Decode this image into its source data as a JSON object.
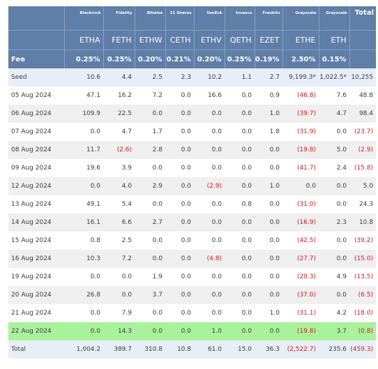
{
  "chart_data": {
    "type": "table",
    "columns": [
      {
        "issuer": "",
        "ticker": "",
        "fee": "Fee"
      },
      {
        "issuer": "Blackrock",
        "ticker": "ETHA",
        "fee": "0.25%"
      },
      {
        "issuer": "Fidelity",
        "ticker": "FETH",
        "fee": "0.25%"
      },
      {
        "issuer": "Bitwise",
        "ticker": "ETHW",
        "fee": "0.20%"
      },
      {
        "issuer": "21 Shares",
        "ticker": "CETH",
        "fee": "0.21%"
      },
      {
        "issuer": "VanEck",
        "ticker": "ETHV",
        "fee": "0.20%"
      },
      {
        "issuer": "Invesco",
        "ticker": "QETH",
        "fee": "0.25%"
      },
      {
        "issuer": "Franklin",
        "ticker": "EZET",
        "fee": "0.19%"
      },
      {
        "issuer": "Grayscale",
        "ticker": "ETHE",
        "fee": "2.50%"
      },
      {
        "issuer": "Grayscale",
        "ticker": "ETH",
        "fee": "0.15%"
      },
      {
        "issuer": "Total",
        "ticker": "",
        "fee": ""
      }
    ],
    "rows": [
      {
        "label": "Seed",
        "style": "seed",
        "cells": [
          "10.6",
          "4.4",
          "2.5",
          "2.3",
          "10.2",
          "1.1",
          "2.7",
          "9,199.3*",
          "1,022.5*",
          "10,255"
        ]
      },
      {
        "label": "05 Aug 2024",
        "style": "plain",
        "cells": [
          "47.1",
          "16.2",
          "7.2",
          "0.0",
          "16.6",
          "0.0",
          "0.9",
          "(46.8)",
          "7.6",
          "48.8"
        ]
      },
      {
        "label": "06 Aug 2024",
        "style": "alt",
        "cells": [
          "109.9",
          "22.5",
          "0.0",
          "0.0",
          "0.0",
          "0.0",
          "1.0",
          "(39.7)",
          "4.7",
          "98.4"
        ]
      },
      {
        "label": "07 Aug 2024",
        "style": "plain",
        "cells": [
          "0.0",
          "4.7",
          "1.7",
          "0.0",
          "0.0",
          "0.0",
          "1.8",
          "(31.9)",
          "0.0",
          "(23.7)"
        ]
      },
      {
        "label": "08 Aug 2024",
        "style": "alt",
        "cells": [
          "11.7",
          "(2.6)",
          "2.8",
          "0.0",
          "0.0",
          "0.0",
          "0.0",
          "(19.8)",
          "5.0",
          "(2.9)"
        ]
      },
      {
        "label": "09 Aug 2024",
        "style": "plain",
        "cells": [
          "19.6",
          "3.9",
          "0.0",
          "0.0",
          "0.0",
          "0.0",
          "0.0",
          "(41.7)",
          "2.4",
          "(15.8)"
        ]
      },
      {
        "label": "12 Aug 2024",
        "style": "alt",
        "cells": [
          "0.0",
          "4.0",
          "2.9",
          "0.0",
          "(2.9)",
          "0.0",
          "1.0",
          "0.0",
          "0.0",
          "5.0"
        ]
      },
      {
        "label": "13 Aug 2024",
        "style": "plain",
        "cells": [
          "49.1",
          "5.4",
          "0.0",
          "0.0",
          "0.0",
          "0.8",
          "0.0",
          "(31.0)",
          "0.0",
          "24.3"
        ]
      },
      {
        "label": "14 Aug 2024",
        "style": "alt",
        "cells": [
          "16.1",
          "6.6",
          "2.7",
          "0.0",
          "0.0",
          "0.0",
          "0.0",
          "(16.9)",
          "2.3",
          "10.8"
        ]
      },
      {
        "label": "15 Aug 2024",
        "style": "plain",
        "cells": [
          "0.8",
          "2.5",
          "0.0",
          "0.0",
          "0.0",
          "0.0",
          "0.0",
          "(42.5)",
          "0.0",
          "(39.2)"
        ]
      },
      {
        "label": "16 Aug 2024",
        "style": "alt",
        "cells": [
          "10.3",
          "7.2",
          "0.0",
          "0.0",
          "(4.8)",
          "0.0",
          "0.0",
          "(27.7)",
          "0.0",
          "(15.0)"
        ]
      },
      {
        "label": "19 Aug 2024",
        "style": "plain",
        "cells": [
          "0.0",
          "0.0",
          "1.9",
          "0.0",
          "0.0",
          "0.0",
          "0.0",
          "(20.3)",
          "4.9",
          "(13.5)"
        ]
      },
      {
        "label": "20 Aug 2024",
        "style": "alt",
        "cells": [
          "26.8",
          "0.0",
          "3.7",
          "0.0",
          "0.0",
          "0.0",
          "0.0",
          "(37.0)",
          "0.0",
          "(6.5)"
        ]
      },
      {
        "label": "21 Aug 2024",
        "style": "plain",
        "cells": [
          "0.0",
          "7.9",
          "0.0",
          "0.0",
          "0.0",
          "0.0",
          "1.0",
          "(31.1)",
          "4.2",
          "(18.0)"
        ]
      },
      {
        "label": "22 Aug 2024",
        "style": "hl",
        "cells": [
          "0.0",
          "14.3",
          "0.0",
          "0.0",
          "1.0",
          "0.0",
          "0.0",
          "(19.8)",
          "3.7",
          "(0.8)"
        ]
      },
      {
        "label": "Total",
        "style": "total",
        "cells": [
          "1,004.2",
          "389.7",
          "310.8",
          "10.8",
          "61.0",
          "15.0",
          "36.3",
          "(2,522.7)",
          "235.6",
          "(459.3)"
        ]
      }
    ]
  },
  "colors": {
    "header_bg": "#5f7ea8",
    "header_text": "#ffffff",
    "negative": "#d21a1a",
    "highlight_row": "#a9f29c",
    "band_light": "#e8eef7",
    "band_grey": "#efefef"
  }
}
